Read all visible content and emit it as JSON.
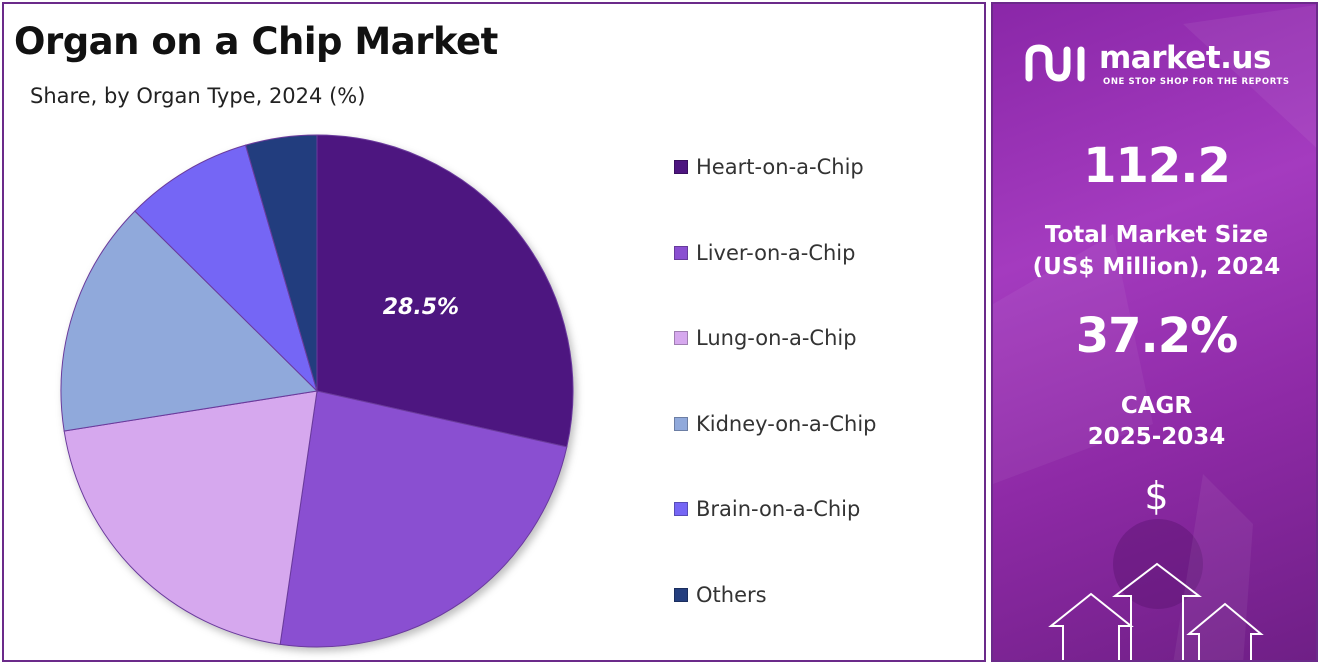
{
  "title": "Organ on a Chip Market",
  "subtitle": "Share, by Organ Type, 2024 (%)",
  "chart_data": {
    "type": "pie",
    "title": "Organ on a Chip Market",
    "subtitle": "Share, by Organ Type, 2024 (%)",
    "categories": [
      "Heart-on-a-Chip",
      "Liver-on-a-Chip",
      "Lung-on-a-Chip",
      "Kidney-on-a-Chip",
      "Brain-on-a-Chip",
      "Others"
    ],
    "values": [
      28.5,
      23.8,
      20.2,
      14.9,
      8.1,
      4.5
    ],
    "colors": [
      "#4e1580",
      "#8a4fd1",
      "#d6a8ee",
      "#90a9db",
      "#7566f5",
      "#243e7e"
    ],
    "data_labels": [
      "28.5%",
      "",
      "",
      "",
      "",
      ""
    ],
    "legend_position": "right"
  },
  "brand": {
    "name": "market.us",
    "tagline": "ONE STOP SHOP FOR THE REPORTS"
  },
  "stats": {
    "market_size": "112.2",
    "market_size_label_line1": "Total Market Size",
    "market_size_label_line2": "(US$ Million), 2024",
    "cagr": "37.2%",
    "cagr_label_line1": "CAGR",
    "cagr_label_line2": "2025-2034",
    "currency_symbol": "$"
  },
  "colors": {
    "panel_gradient_start": "#8a27a8",
    "panel_gradient_end": "#6f1f86",
    "border": "#6b2a8a"
  }
}
